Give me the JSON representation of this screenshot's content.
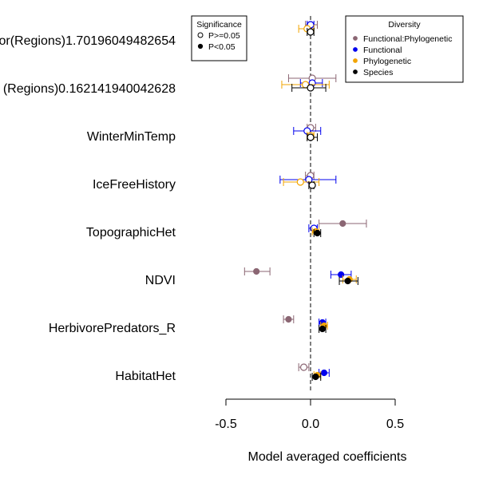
{
  "chart_data": {
    "type": "forest",
    "xlabel": "Model averaged coefficients",
    "xlim": [
      -0.5,
      0.5
    ],
    "x_ticks": [
      -0.5,
      0,
      0.5
    ],
    "x_tick_labels": [
      "-0.5",
      "0.0",
      "0.5"
    ],
    "reference_line": 0,
    "variables": [
      "or(Regions)1.70196049482654",
      "(Regions)0.162141940042628",
      "WinterMinTemp",
      "IceFreeHistory",
      "TopographicHet",
      "NDVI",
      "HerbivorePredators_R",
      "HabitatHet"
    ],
    "series": [
      {
        "name": "Functional:Phylogenetic",
        "color": "#8b6673",
        "points": [
          {
            "est": 0.0,
            "lo": -0.03,
            "hi": 0.04,
            "sig": false
          },
          {
            "est": 0.01,
            "lo": -0.13,
            "hi": 0.15,
            "sig": false
          },
          {
            "est": 0.0,
            "lo": -0.02,
            "hi": 0.03,
            "sig": false
          },
          {
            "est": 0.0,
            "lo": -0.03,
            "hi": 0.02,
            "sig": false
          },
          {
            "est": 0.19,
            "lo": 0.05,
            "hi": 0.33,
            "sig": true
          },
          {
            "est": -0.32,
            "lo": -0.39,
            "hi": -0.24,
            "sig": true
          },
          {
            "est": -0.13,
            "lo": -0.16,
            "hi": -0.1,
            "sig": true
          },
          {
            "est": -0.04,
            "lo": -0.07,
            "hi": -0.01,
            "sig": false
          }
        ]
      },
      {
        "name": "Functional",
        "color": "#0000ee",
        "points": [
          {
            "est": 0.0,
            "lo": -0.02,
            "hi": 0.02,
            "sig": false
          },
          {
            "est": 0.01,
            "lo": -0.06,
            "hi": 0.07,
            "sig": false
          },
          {
            "est": -0.02,
            "lo": -0.1,
            "hi": 0.06,
            "sig": false
          },
          {
            "est": -0.01,
            "lo": -0.18,
            "hi": 0.15,
            "sig": false
          },
          {
            "est": 0.02,
            "lo": -0.01,
            "hi": 0.04,
            "sig": false
          },
          {
            "est": 0.18,
            "lo": 0.12,
            "hi": 0.24,
            "sig": true
          },
          {
            "est": 0.07,
            "lo": 0.05,
            "hi": 0.09,
            "sig": true
          },
          {
            "est": 0.08,
            "lo": 0.05,
            "hi": 0.11,
            "sig": true
          }
        ]
      },
      {
        "name": "Phylogenetic",
        "color": "#f2a400",
        "points": [
          {
            "est": -0.02,
            "lo": -0.07,
            "hi": 0.02,
            "sig": false
          },
          {
            "est": -0.03,
            "lo": -0.17,
            "hi": 0.11,
            "sig": false
          },
          {
            "est": 0.0,
            "lo": -0.02,
            "hi": 0.02,
            "sig": false
          },
          {
            "est": -0.06,
            "lo": -0.16,
            "hi": 0.05,
            "sig": false
          },
          {
            "est": 0.03,
            "lo": 0.01,
            "hi": 0.05,
            "sig": true
          },
          {
            "est": 0.23,
            "lo": 0.19,
            "hi": 0.27,
            "sig": true
          },
          {
            "est": 0.08,
            "lo": 0.06,
            "hi": 0.1,
            "sig": true
          },
          {
            "est": 0.04,
            "lo": 0.02,
            "hi": 0.06,
            "sig": true
          }
        ]
      },
      {
        "name": "Species",
        "color": "#000000",
        "points": [
          {
            "est": 0.0,
            "lo": -0.02,
            "hi": 0.02,
            "sig": false
          },
          {
            "est": 0.0,
            "lo": -0.11,
            "hi": 0.09,
            "sig": false
          },
          {
            "est": 0.0,
            "lo": -0.02,
            "hi": 0.04,
            "sig": false
          },
          {
            "est": 0.01,
            "lo": -0.01,
            "hi": 0.02,
            "sig": false
          },
          {
            "est": 0.04,
            "lo": 0.02,
            "hi": 0.06,
            "sig": true
          },
          {
            "est": 0.22,
            "lo": 0.17,
            "hi": 0.28,
            "sig": true
          },
          {
            "est": 0.07,
            "lo": 0.05,
            "hi": 0.09,
            "sig": true
          },
          {
            "est": 0.03,
            "lo": 0.01,
            "hi": 0.06,
            "sig": true
          }
        ]
      }
    ],
    "legend_diversity": {
      "title": "Diversity",
      "position": "top-right",
      "entries": [
        "Functional:Phylogenetic",
        "Functional",
        "Phylogenetic",
        "Species"
      ]
    },
    "legend_significance": {
      "title": "Significance",
      "position": "top-center",
      "entries": [
        "P>=0.05",
        "P<0.05"
      ]
    }
  }
}
